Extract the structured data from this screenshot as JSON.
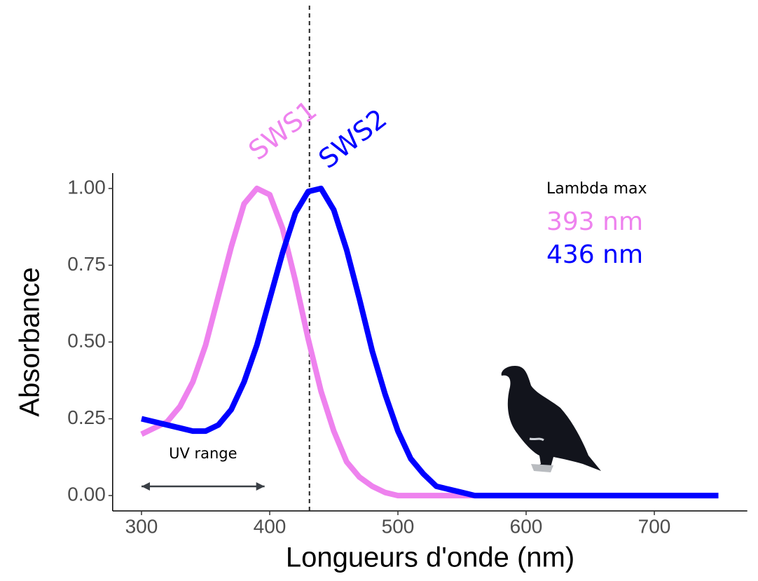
{
  "chart_data": {
    "type": "line",
    "x_label": "Longueurs d'onde (nm)",
    "y_label": "Absorbance",
    "x": [
      300,
      310,
      320,
      330,
      340,
      350,
      360,
      370,
      380,
      390,
      400,
      410,
      420,
      430,
      440,
      450,
      460,
      470,
      480,
      490,
      500,
      510,
      520,
      530,
      540,
      550,
      560,
      570,
      580,
      590,
      600,
      610,
      620,
      630,
      640,
      650,
      660,
      670,
      680,
      690,
      700,
      710,
      720,
      730,
      740,
      750
    ],
    "series": [
      {
        "name": "SWS1",
        "color": "#ee82ee",
        "values": [
          0.2,
          0.22,
          0.24,
          0.29,
          0.37,
          0.49,
          0.65,
          0.81,
          0.95,
          1.0,
          0.98,
          0.87,
          0.7,
          0.51,
          0.34,
          0.21,
          0.11,
          0.06,
          0.03,
          0.01,
          0,
          0,
          0,
          0,
          0,
          0,
          0,
          0,
          0,
          0,
          0,
          0,
          0,
          0,
          0,
          0,
          0,
          0,
          0,
          0,
          0,
          0,
          0,
          0,
          0,
          0
        ]
      },
      {
        "name": "SWS2",
        "color": "#0000ff",
        "values": [
          0.25,
          0.24,
          0.23,
          0.22,
          0.21,
          0.21,
          0.23,
          0.28,
          0.37,
          0.49,
          0.64,
          0.79,
          0.92,
          0.99,
          1.0,
          0.93,
          0.8,
          0.64,
          0.47,
          0.33,
          0.21,
          0.12,
          0.07,
          0.03,
          0.02,
          0.01,
          0,
          0,
          0,
          0,
          0,
          0,
          0,
          0,
          0,
          0,
          0,
          0,
          0,
          0,
          0,
          0,
          0,
          0,
          0,
          0
        ]
      }
    ],
    "xlim": [
      277.5,
      772.5
    ],
    "ylim": [
      -0.05,
      1.05
    ],
    "xticks": [
      300,
      400,
      500,
      600,
      700
    ],
    "yticks": [
      {
        "value": 0,
        "label": "0.00"
      },
      {
        "value": 0.25,
        "label": "0.25"
      },
      {
        "value": 0.5,
        "label": "0.50"
      },
      {
        "value": 0.75,
        "label": "0.75"
      },
      {
        "value": 1,
        "label": "1.00"
      }
    ],
    "vline": 431,
    "uv_range": {
      "label": "UV range",
      "x": [
        300,
        396
      ],
      "y": 0.03
    },
    "lambda_max": {
      "title": "Lambda max",
      "labels": [
        "393 nm",
        "436 nm"
      ]
    }
  }
}
